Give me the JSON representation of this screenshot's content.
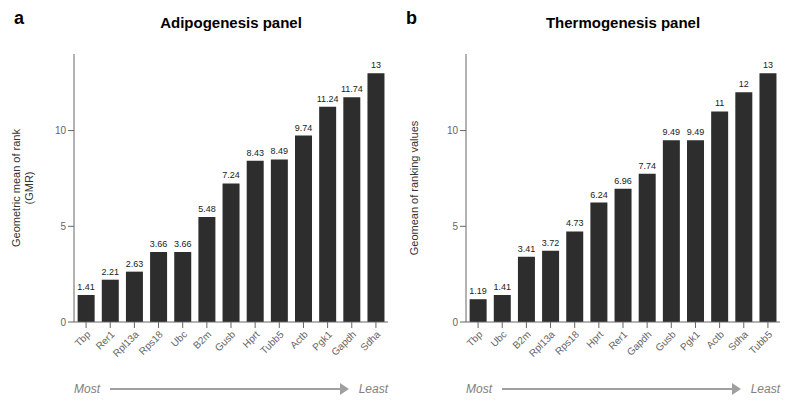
{
  "chart_data": [
    {
      "type": "bar",
      "title": "Adipogenesis panel",
      "ylabel": "Geometric mean of rank\n(GMR)",
      "categories": [
        "Tbp",
        "Rer1",
        "Rpl13a",
        "Rps18",
        "Ubc",
        "B2m",
        "Gusb",
        "Hprt",
        "Tubb5",
        "Actb",
        "Pgk1",
        "Gapdh",
        "Sdha"
      ],
      "values": [
        1.41,
        2.21,
        2.63,
        3.66,
        3.66,
        5.48,
        7.24,
        8.43,
        8.49,
        9.74,
        11.24,
        11.74,
        13
      ],
      "color": "#2d2d2d",
      "ylim": [
        0,
        14
      ],
      "yticks": [
        0,
        5,
        10
      ],
      "grid": false,
      "data_labels": true,
      "annotations": [
        "a",
        "Most",
        "Least"
      ]
    },
    {
      "type": "bar",
      "title": "Thermogenesis panel",
      "ylabel": "Geomean of ranking values",
      "categories": [
        "Tbp",
        "Ubc",
        "B2m",
        "Rpl13a",
        "Rps18",
        "Hprt",
        "Rer1",
        "Gapdh",
        "Gusb",
        "Pgk1",
        "Actb",
        "Sdha",
        "Tubb5"
      ],
      "values": [
        1.19,
        1.41,
        3.41,
        3.72,
        4.73,
        6.24,
        6.96,
        7.74,
        9.49,
        9.49,
        11,
        12,
        13
      ],
      "color": "#2d2d2d",
      "ylim": [
        0,
        14
      ],
      "yticks": [
        0,
        5,
        10
      ],
      "grid": false,
      "data_labels": true,
      "annotations": [
        "b",
        "Most",
        "Least"
      ]
    }
  ]
}
